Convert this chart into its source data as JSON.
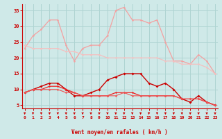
{
  "x": [
    0,
    1,
    2,
    3,
    4,
    5,
    6,
    7,
    8,
    9,
    10,
    11,
    12,
    13,
    14,
    15,
    16,
    17,
    18,
    19,
    20,
    21,
    22,
    23
  ],
  "line1": [
    23,
    27,
    29,
    32,
    32,
    24,
    19,
    23,
    24,
    24,
    27,
    35,
    36,
    32,
    32,
    31,
    32,
    25,
    19,
    19,
    18,
    21,
    19,
    15
  ],
  "line2": [
    24,
    23,
    23,
    23,
    23,
    22,
    22,
    21,
    21,
    21,
    20,
    20,
    20,
    20,
    20,
    20,
    20,
    19,
    19,
    18,
    18,
    18,
    17,
    15
  ],
  "line3": [
    9,
    10,
    11,
    12,
    12,
    10,
    8,
    8,
    9,
    10,
    13,
    14,
    15,
    15,
    15,
    12,
    11,
    12,
    10,
    7,
    6,
    8,
    6,
    5
  ],
  "line4": [
    9,
    10,
    10,
    11,
    11,
    10,
    9,
    8,
    8,
    8,
    8,
    9,
    9,
    9,
    8,
    8,
    8,
    8,
    8,
    7,
    7,
    7,
    6,
    5
  ],
  "line5": [
    9,
    10,
    10,
    10,
    10,
    9,
    9,
    8,
    8,
    8,
    8,
    8,
    9,
    8,
    8,
    8,
    8,
    8,
    8,
    7,
    7,
    7,
    6,
    5
  ],
  "background_color": "#cfe9e8",
  "grid_color": "#aed4d2",
  "line1_color": "#f4a0a0",
  "line2_color": "#f4c0c0",
  "line3_color": "#cc0000",
  "line4_color": "#ee2222",
  "line5_color": "#ee5555",
  "xlabel": "Vent moyen/en rafales ( km/h )",
  "ylim": [
    4,
    37
  ],
  "xlim": [
    -0.3,
    23.3
  ],
  "yticks": [
    5,
    10,
    15,
    20,
    25,
    30,
    35
  ],
  "xticks": [
    0,
    1,
    2,
    3,
    4,
    5,
    6,
    7,
    8,
    9,
    10,
    11,
    12,
    13,
    14,
    15,
    16,
    17,
    18,
    19,
    20,
    21,
    22,
    23
  ]
}
